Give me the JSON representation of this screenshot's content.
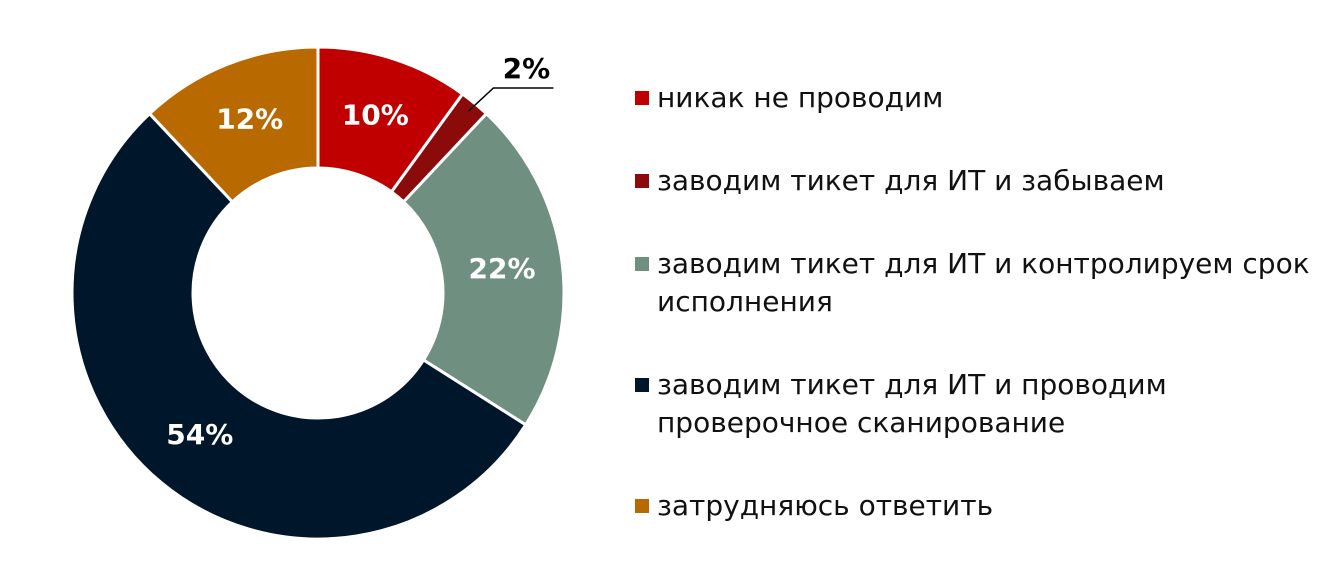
{
  "chart_data": {
    "type": "donut",
    "categories": [
      "никак не проводим",
      "заводим тикет для ИТ и забываем",
      "заводим тикет для ИТ и контролируем срок исполнения",
      "заводим тикет для ИТ и проводим проверочное сканирование",
      "затрудняюсь ответить"
    ],
    "values": [
      10,
      2,
      22,
      54,
      12
    ],
    "value_labels": [
      "10%",
      "2%",
      "22%",
      "54%",
      "12%"
    ],
    "colors": [
      "#c00000",
      "#8b0a0a",
      "#6f8f80",
      "#00172b",
      "#b86a00"
    ],
    "legend": "right"
  }
}
